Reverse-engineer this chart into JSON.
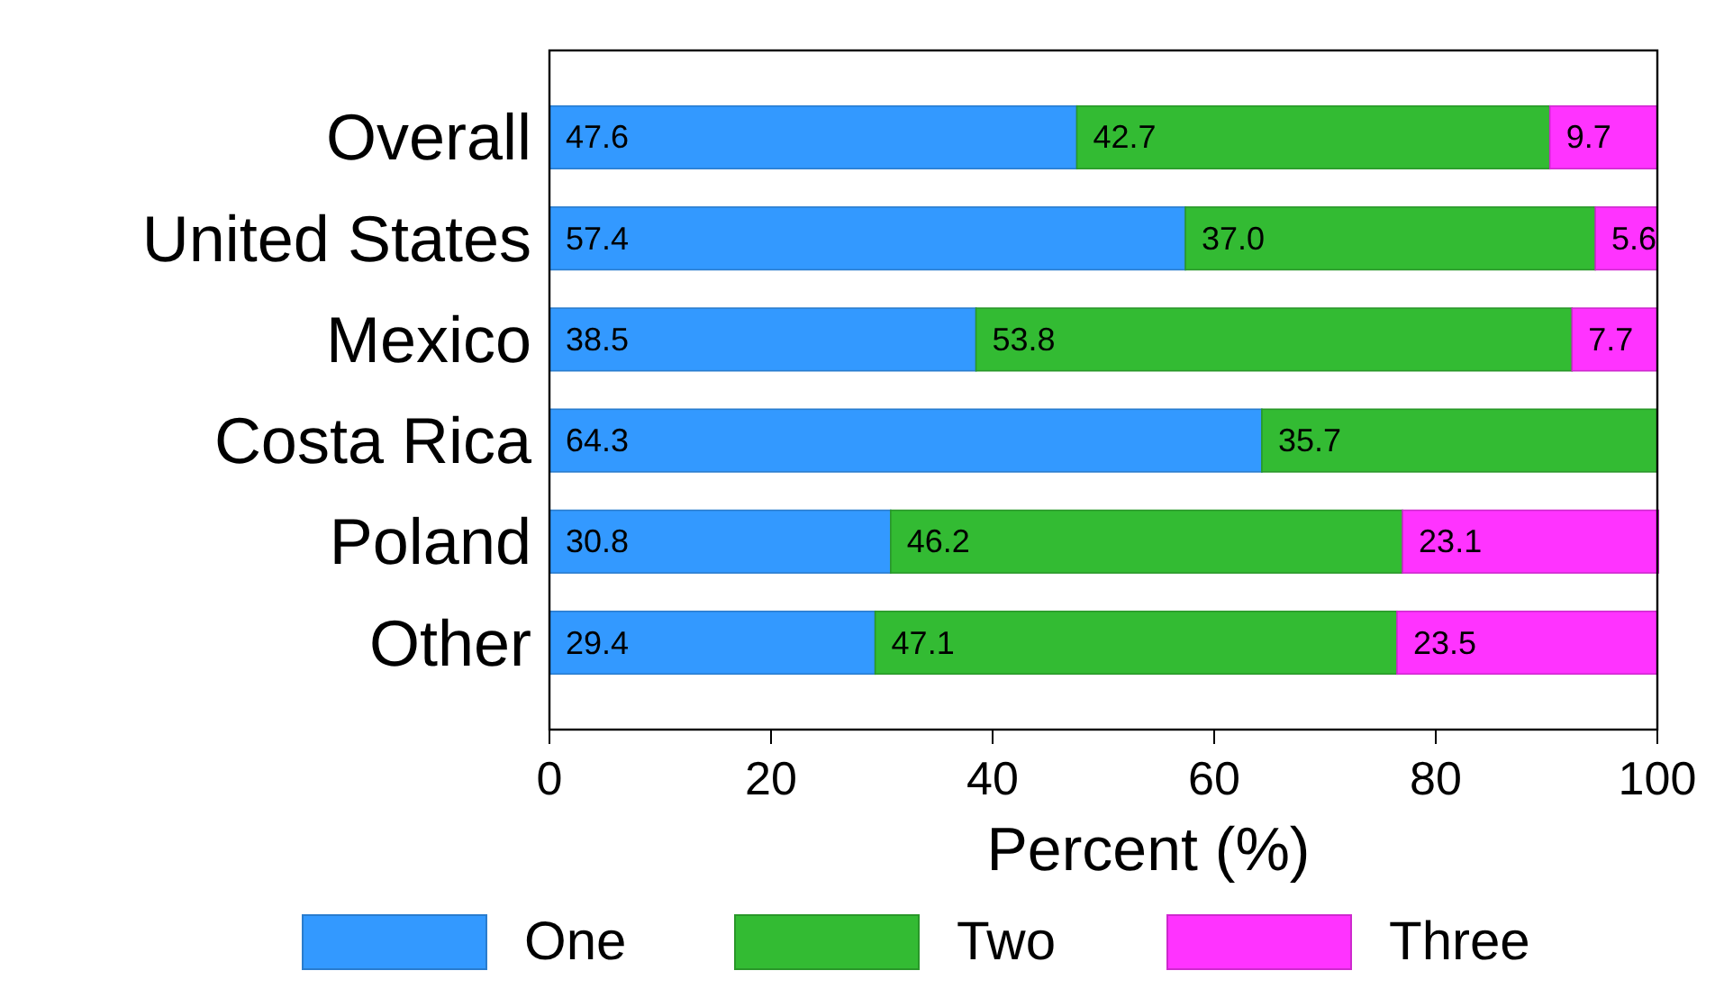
{
  "chart_data": {
    "type": "bar",
    "orientation": "horizontal",
    "stacked": true,
    "xlabel": "Percent (%)",
    "categories": [
      "Overall",
      "United States",
      "Mexico",
      "Costa Rica",
      "Poland",
      "Other"
    ],
    "xlim": [
      0,
      100
    ],
    "xticks": [
      0,
      20,
      40,
      60,
      80,
      100
    ],
    "legend": "bottom",
    "grid": false,
    "series": [
      {
        "name": "One",
        "color": "#3399ff",
        "values": [
          47.6,
          57.4,
          38.5,
          64.3,
          30.8,
          29.4
        ],
        "value_labels": [
          "47.6",
          "57.4",
          "38.5",
          "64.3",
          "30.8",
          "29.4"
        ]
      },
      {
        "name": "Two",
        "color": "#33bb33",
        "values": [
          42.7,
          37.0,
          53.8,
          35.7,
          46.2,
          47.1
        ],
        "value_labels": [
          "42.7",
          "37.0",
          "53.8",
          "35.7",
          "46.2",
          "47.1"
        ]
      },
      {
        "name": "Three",
        "color": "#ff33ff",
        "values": [
          9.7,
          5.6,
          7.7,
          0,
          23.1,
          23.5
        ],
        "value_labels": [
          "9.7",
          "5.6",
          "7.7",
          null,
          "23.1",
          "23.5"
        ]
      }
    ]
  }
}
